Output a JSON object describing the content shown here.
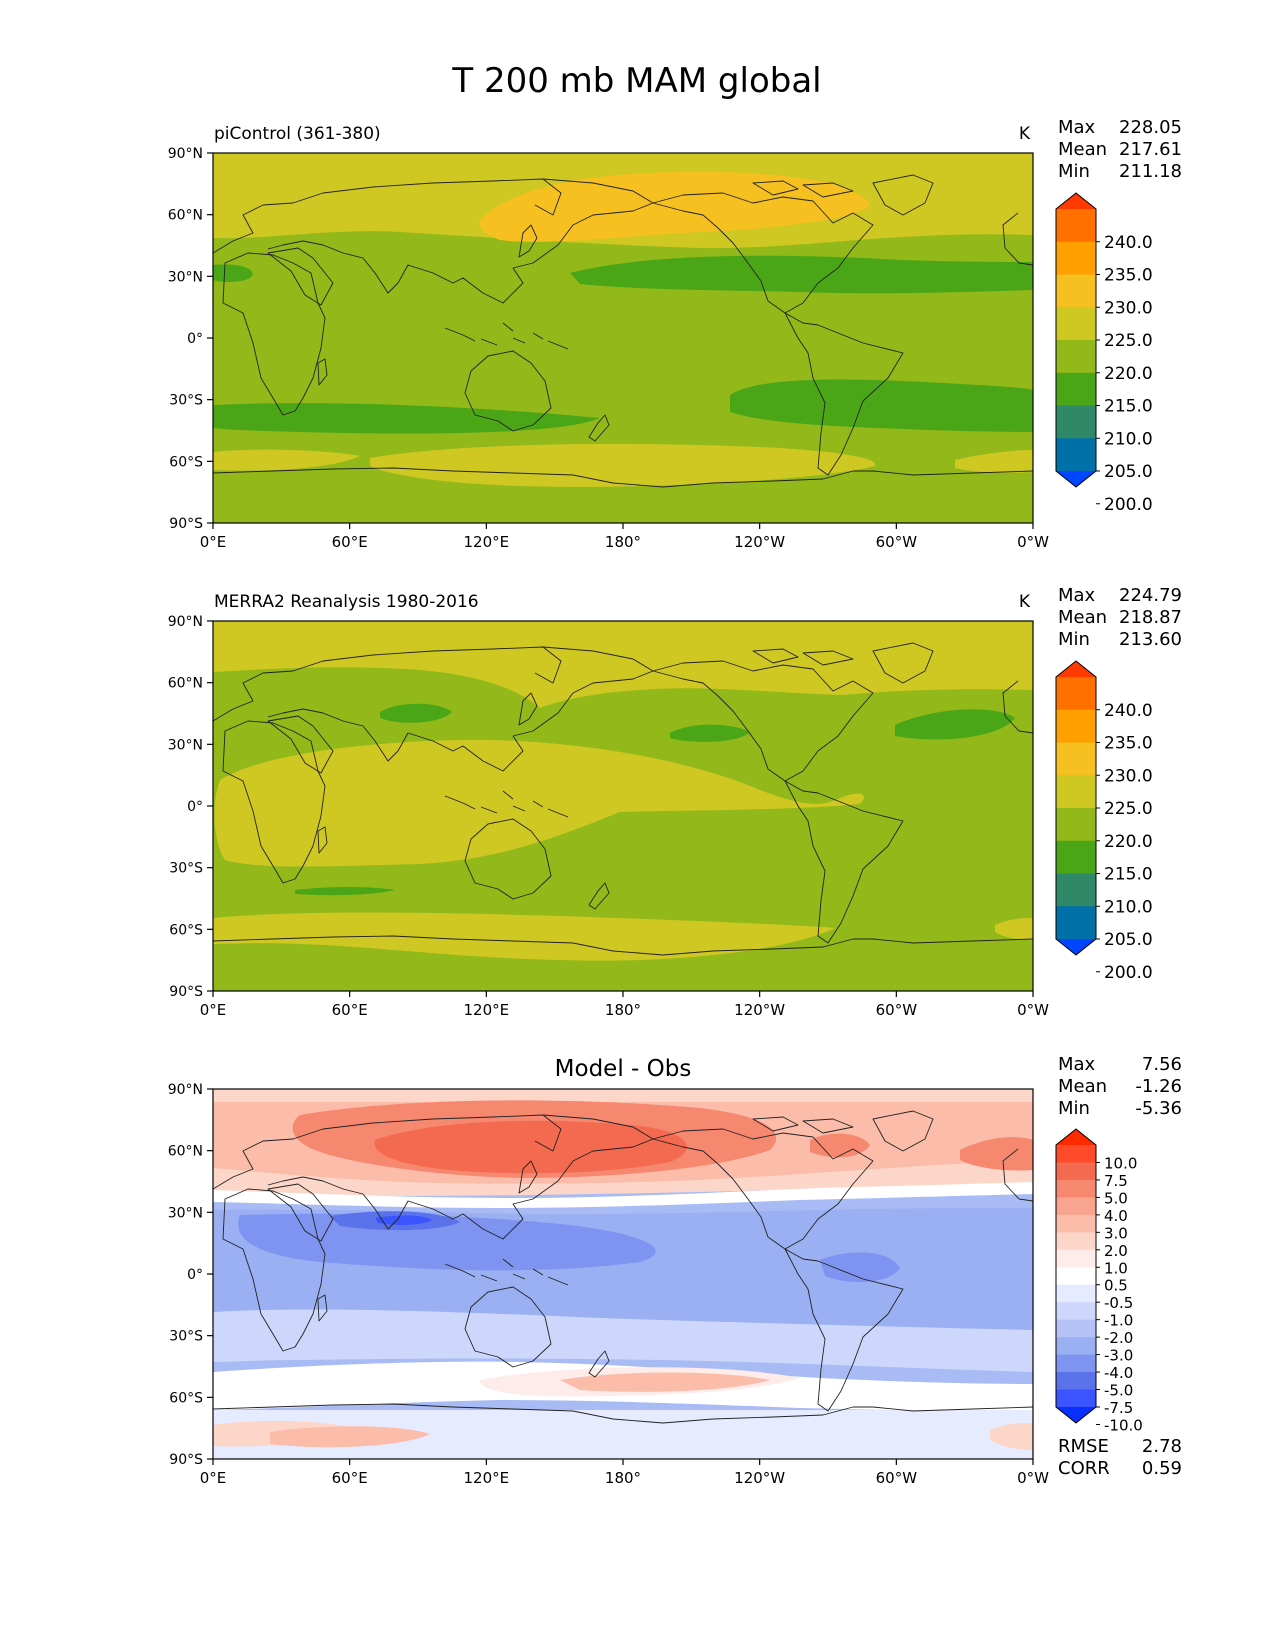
{
  "figure": {
    "title": "T 200 mb MAM global"
  },
  "axes": {
    "lon_ticks": [
      "0°E",
      "60°E",
      "120°E",
      "180°",
      "120°W",
      "60°W",
      "0°W"
    ],
    "lat_ticks": [
      "90°N",
      "60°N",
      "30°N",
      "0°",
      "30°S",
      "60°S",
      "90°S"
    ]
  },
  "panels": [
    {
      "title": "piControl (361-380)",
      "units": "K",
      "stats": [
        {
          "label": "Max",
          "value": "228.05"
        },
        {
          "label": "Mean",
          "value": "217.61"
        },
        {
          "label": "Min",
          "value": "211.18"
        }
      ],
      "colorbar": {
        "levels": [
          "240.0",
          "235.0",
          "230.0",
          "225.0",
          "220.0",
          "215.0",
          "210.0",
          "205.0",
          "200.0"
        ],
        "colors": [
          "#ff3a00",
          "#ff7000",
          "#ffa000",
          "#f5c020",
          "#cfc822",
          "#92b81a",
          "#4aa616",
          "#2f8868",
          "#0070a8",
          "#0045ff"
        ]
      },
      "field_fill": "#92b81a"
    },
    {
      "title": "MERRA2 Reanalysis 1980-2016",
      "units": "K",
      "stats": [
        {
          "label": "Max",
          "value": "224.79"
        },
        {
          "label": "Mean",
          "value": "218.87"
        },
        {
          "label": "Min",
          "value": "213.60"
        }
      ],
      "colorbar": {
        "levels": [
          "240.0",
          "235.0",
          "230.0",
          "225.0",
          "220.0",
          "215.0",
          "210.0",
          "205.0",
          "200.0"
        ],
        "colors": [
          "#ff3a00",
          "#ff7000",
          "#ffa000",
          "#f5c020",
          "#cfc822",
          "#92b81a",
          "#4aa616",
          "#2f8868",
          "#0070a8",
          "#0045ff"
        ]
      },
      "field_fill": "#92b81a"
    },
    {
      "title": "Model - Obs",
      "units": "",
      "stats": [
        {
          "label": "Max",
          "value": "7.56"
        },
        {
          "label": "Mean",
          "value": "-1.26"
        },
        {
          "label": "Min",
          "value": "-5.36"
        }
      ],
      "colorbar": {
        "levels": [
          "10.0",
          "7.5",
          "5.0",
          "4.0",
          "3.0",
          "2.0",
          "1.0",
          "0.5",
          "-0.5",
          "-1.0",
          "-2.0",
          "-3.0",
          "-4.0",
          "-5.0",
          "-7.5",
          "-10.0"
        ],
        "colors": [
          "#ff2a00",
          "#ff4a2a",
          "#f46a50",
          "#f78870",
          "#f9a48f",
          "#fbbcaa",
          "#fdd6ca",
          "#feecea",
          "#ffffff",
          "#e6ebff",
          "#cdd7fb",
          "#b5c2f7",
          "#9bb0f3",
          "#7f94f0",
          "#5a72ea",
          "#3a55ff",
          "#0a30ff"
        ]
      },
      "field_fill": "#a8bbf5",
      "metrics": [
        {
          "label": "RMSE",
          "value": "2.78"
        },
        {
          "label": "CORR",
          "value": "0.59"
        }
      ]
    }
  ]
}
